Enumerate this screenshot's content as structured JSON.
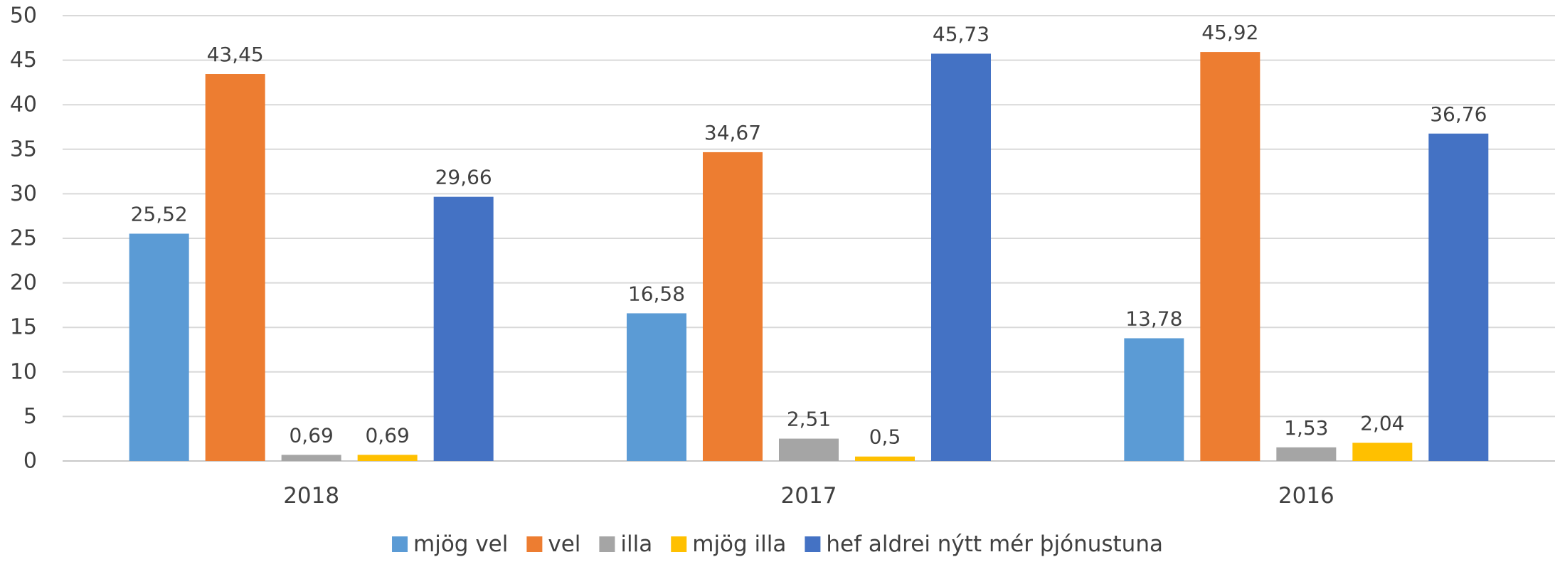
{
  "chart_data": {
    "type": "bar",
    "title": "",
    "xlabel": "",
    "ylabel": "",
    "categories": [
      "2018",
      "2017",
      "2016"
    ],
    "ylim": [
      0,
      50
    ],
    "yticks": [
      0,
      5,
      10,
      15,
      20,
      25,
      30,
      35,
      40,
      45,
      50
    ],
    "ytick_labels": [
      "0",
      "5",
      "10",
      "15",
      "20",
      "25",
      "30",
      "35",
      "40",
      "45",
      "50"
    ],
    "grid": true,
    "legend_position": "bottom",
    "series": [
      {
        "name": "mjög vel",
        "color": "#5B9BD5",
        "values": [
          25.52,
          16.58,
          13.78
        ],
        "labels": [
          "25,52",
          "16,58",
          "13,78"
        ]
      },
      {
        "name": "vel",
        "color": "#ED7D31",
        "values": [
          43.45,
          34.67,
          45.92
        ],
        "labels": [
          "43,45",
          "34,67",
          "45,92"
        ]
      },
      {
        "name": "illa",
        "color": "#A5A5A5",
        "values": [
          0.69,
          2.51,
          1.53
        ],
        "labels": [
          "0,69",
          "2,51",
          "1,53"
        ]
      },
      {
        "name": "mjög illa",
        "color": "#FFC000",
        "values": [
          0.69,
          0.5,
          2.04
        ],
        "labels": [
          "0,69",
          "0,5",
          "2,04"
        ]
      },
      {
        "name": "hef aldrei nýtt mér þjónustuna",
        "color": "#4472C4",
        "values": [
          29.66,
          45.73,
          36.76
        ],
        "labels": [
          "29,66",
          "45,73",
          "36,76"
        ]
      }
    ]
  }
}
